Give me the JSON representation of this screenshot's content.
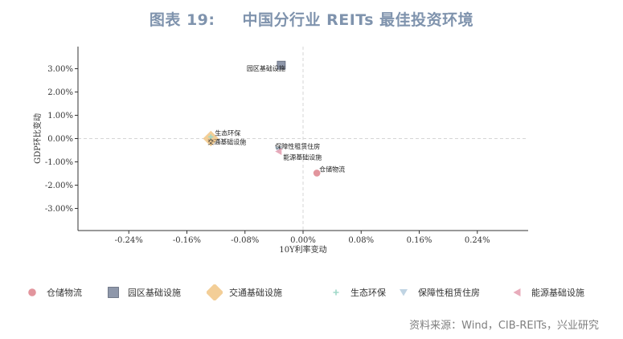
{
  "title": {
    "prefix": "图表 19:",
    "main": "中国分行业 REITs 最佳投资环境"
  },
  "source": "资料来源：Wind，CIB-REITs，兴业研究",
  "chart_data": {
    "type": "scatter",
    "xlabel": "10Y利率变动",
    "ylabel": "GDP环比变动",
    "xlim": [
      -0.31,
      0.31
    ],
    "ylim": [
      -3.95,
      3.95
    ],
    "xticks": [
      -0.24,
      -0.16,
      -0.08,
      0.0,
      0.08,
      0.16,
      0.24
    ],
    "xtick_labels": [
      "-0.24%",
      "-0.16%",
      "-0.08%",
      "0.00%",
      "0.08%",
      "0.16%",
      "0.24%"
    ],
    "yticks": [
      3,
      2,
      1,
      0,
      -1,
      -2,
      -3
    ],
    "ytick_labels": [
      "3.00%",
      "2.00%",
      "1.00%",
      "0.00%",
      "-1.00%",
      "-2.00%",
      "-3.00%"
    ],
    "grid": "dashed zero lines",
    "legend_position": "bottom",
    "series": [
      {
        "name": "仓储物流",
        "marker": "circle",
        "color": "#e08f98",
        "x": 0.019,
        "y": -1.48,
        "label": "仓储物流"
      },
      {
        "name": "园区基础设施",
        "marker": "square",
        "color": "#8e97aa",
        "x": -0.03,
        "y": 3.15,
        "label": "园区基础设施"
      },
      {
        "name": "交通基础设施",
        "marker": "diamond",
        "color": "#f2c98c",
        "x": -0.127,
        "y": 0.0,
        "label": "交通基础设施"
      },
      {
        "name": "生态环保",
        "marker": "star",
        "color": "#9fd8c8",
        "x": -0.127,
        "y": 0.07,
        "label": "生态环保"
      },
      {
        "name": "保障性租赁住房",
        "marker": "triangle-down",
        "color": "#b9cfe0",
        "x": -0.034,
        "y": -0.47,
        "label": "保障性租赁住房"
      },
      {
        "name": "能源基础设施",
        "marker": "triangle-left",
        "color": "#e6a3b4",
        "x": -0.034,
        "y": -0.55,
        "label": "能源基础设施"
      }
    ]
  }
}
